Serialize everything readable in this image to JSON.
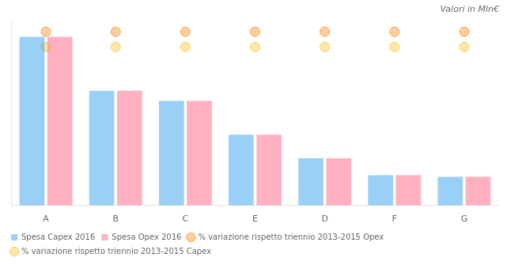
{
  "chart_data": {
    "type": "bar",
    "title": "Valori in Mln€",
    "categories": [
      "A",
      "B",
      "C",
      "E",
      "D",
      "F",
      "G"
    ],
    "series": [
      {
        "name": "Spesa Capex 2016",
        "type": "bar",
        "values": [
          100,
          68,
          62,
          42,
          28,
          18,
          17
        ]
      },
      {
        "name": "Spesa Opex 2016",
        "type": "bar",
        "values": [
          100,
          68,
          62,
          42,
          28,
          18,
          17
        ]
      },
      {
        "name": "% variazione rispetto triennio 2013-2015 Opex",
        "type": "scatter",
        "marker": "circle",
        "values": [
          103,
          103,
          103,
          103,
          103,
          103,
          103
        ]
      },
      {
        "name": "% variazione rispetto triennio 2013-2015 Capex",
        "type": "scatter",
        "marker": "circle",
        "values": [
          94,
          94,
          94,
          94,
          94,
          94,
          94
        ]
      }
    ],
    "ylim": [
      0,
      110
    ],
    "grid": false,
    "legend": "bottom",
    "tick_labels": "x"
  }
}
